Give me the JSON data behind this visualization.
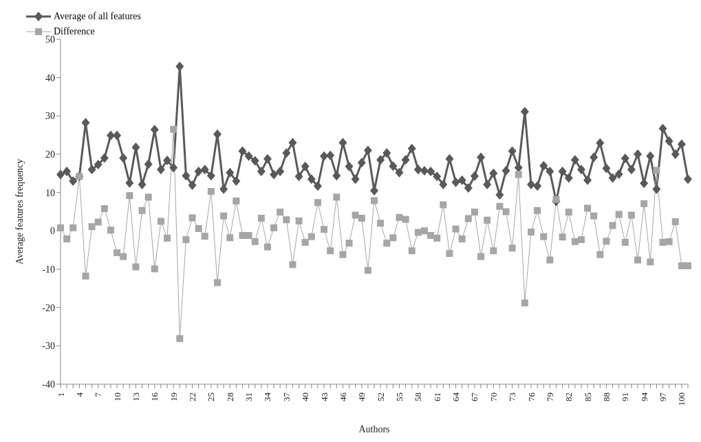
{
  "chart_data": {
    "type": "line",
    "xlabel": "Authors",
    "ylabel": "Average features frequency",
    "categories": [
      "1",
      null,
      null,
      "4",
      null,
      null,
      "7",
      null,
      null,
      "10",
      null,
      null,
      "13",
      null,
      null,
      "16",
      null,
      null,
      "19",
      null,
      null,
      "22",
      null,
      null,
      "25",
      null,
      null,
      "28",
      null,
      null,
      "31",
      null,
      null,
      "34",
      null,
      null,
      "37",
      null,
      null,
      "40",
      null,
      null,
      "43",
      null,
      null,
      "46",
      null,
      null,
      "49",
      null,
      null,
      "52",
      null,
      null,
      "55",
      null,
      null,
      "58",
      null,
      null,
      "61",
      null,
      null,
      "64",
      null,
      null,
      "67",
      null,
      null,
      "70",
      null,
      null,
      "73",
      null,
      null,
      "76",
      null,
      null,
      "79",
      null,
      null,
      "82",
      null,
      null,
      "85",
      null,
      null,
      "88",
      null,
      null,
      "91",
      null,
      null,
      "94",
      null,
      null,
      "97",
      null,
      null,
      "100",
      null
    ],
    "series": [
      {
        "name": "Average of all features",
        "color": "#595959",
        "marker": "diamond",
        "values": [
          14.7,
          15.5,
          13,
          14.2,
          28.2,
          16,
          17.3,
          19,
          24.9,
          24.9,
          19,
          12.5,
          21.8,
          12.1,
          17.4,
          26.4,
          16,
          18.4,
          16.5,
          42.9,
          14.4,
          11.9,
          15.5,
          16,
          14.4,
          25.2,
          10.9,
          15.2,
          13,
          20.8,
          19.5,
          18.3,
          15.5,
          18.8,
          14.7,
          15.5,
          20.3,
          23,
          14.2,
          16.8,
          13.5,
          11.7,
          19.5,
          19.7,
          14.4,
          23,
          16.8,
          13.5,
          17.8,
          21,
          10.5,
          18.5,
          20.3,
          16.9,
          15.2,
          18.5,
          21.5,
          16,
          15.7,
          15.5,
          14.2,
          12.1,
          18.8,
          12.7,
          13.2,
          11.2,
          14.3,
          19.2,
          12.1,
          15,
          9.4,
          15.7,
          20.8,
          16.5,
          31.1,
          12.1,
          11.7,
          17,
          15.5,
          7.7,
          15.5,
          13.8,
          18.5,
          16,
          13.2,
          19.2,
          22.9,
          16.3,
          13.8,
          14.8,
          18.9,
          16,
          20,
          12.4,
          19.5,
          10.9,
          26.7,
          23.4,
          20,
          22.6,
          13.5
        ]
      },
      {
        "name": "Difference",
        "color": "#a6a6a6",
        "marker": "square",
        "values": [
          0.8,
          -2.1,
          0.8,
          14.2,
          -11.8,
          1.1,
          2.3,
          5.8,
          0.2,
          -5.7,
          -6.7,
          9.2,
          -9.4,
          5.3,
          8.8,
          -9.9,
          2.5,
          -1.9,
          26.5,
          -28.1,
          -2.3,
          3.4,
          0.6,
          -1.4,
          10.3,
          -13.5,
          3.9,
          -1.8,
          7.8,
          -1.2,
          -1.2,
          -2.8,
          3.3,
          -4.2,
          0.8,
          4.9,
          2.9,
          -8.8,
          2.6,
          -3,
          -1.5,
          7.4,
          0.4,
          -5.2,
          8.8,
          -6.2,
          -3.2,
          4.1,
          3.3,
          -10.3,
          7.9,
          2,
          -3.2,
          -1.8,
          3.5,
          3,
          -5.2,
          -0.4,
          0,
          -1.2,
          -1.9,
          6.8,
          -5.9,
          0.5,
          -2.1,
          3.2,
          4.9,
          -6.7,
          2.8,
          -5.2,
          6.4,
          5,
          -4.5,
          14.7,
          -18.8,
          -0.3,
          5.3,
          -1.5,
          -7.6,
          8.2,
          -1.6,
          4.9,
          -2.8,
          -2.3,
          5.9,
          3.9,
          -6.2,
          -2.7,
          1.4,
          4.3,
          -3,
          4.1,
          -7.6,
          7.1,
          -8.1,
          15.8,
          -3,
          -2.8,
          2.4,
          -9.1,
          -9.1
        ]
      }
    ],
    "ylim": [
      -40,
      50
    ],
    "yticks": [
      -40,
      -30,
      -20,
      -10,
      0,
      10,
      20,
      30,
      40,
      50
    ],
    "grid": false,
    "legend": "top left"
  }
}
